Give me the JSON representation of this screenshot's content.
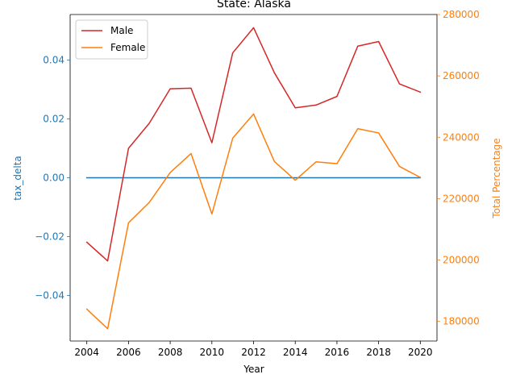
{
  "chart_data": {
    "type": "line",
    "title": "State: Alaska",
    "xlabel": "Year",
    "ylabel_left": "tax_delta",
    "ylabel_right": "Total Percentage",
    "x": [
      2004,
      2005,
      2006,
      2007,
      2008,
      2009,
      2010,
      2011,
      2012,
      2013,
      2014,
      2015,
      2016,
      2017,
      2018,
      2019,
      2020
    ],
    "x_ticks": [
      "2004",
      "2006",
      "2008",
      "2010",
      "2012",
      "2014",
      "2016",
      "2018",
      "2020"
    ],
    "xlim": [
      2003.2,
      2020.8
    ],
    "left_axis": {
      "ylim": [
        -0.0555,
        0.0555
      ],
      "ticks": [
        -0.04,
        -0.02,
        0.0,
        0.02,
        0.04
      ],
      "tick_labels": [
        "−0.04",
        "−0.02",
        "0.00",
        "0.02",
        "0.04"
      ],
      "color": "#1f77b4"
    },
    "right_axis": {
      "ylim": [
        173600,
        280000
      ],
      "ticks": [
        180000,
        200000,
        220000,
        240000,
        260000,
        280000
      ],
      "tick_labels": [
        "180000",
        "200000",
        "220000",
        "240000",
        "260000",
        "280000"
      ],
      "color": "#ff7f0e"
    },
    "series": [
      {
        "name": "",
        "axis": "left",
        "color": "#1f77b4",
        "values": [
          0,
          0,
          0,
          0,
          0,
          0,
          0,
          0,
          0,
          0,
          0,
          0,
          0,
          0,
          0,
          0,
          0
        ]
      },
      {
        "name": "Male",
        "axis": "right",
        "color": "#d62728",
        "values": [
          205800,
          199700,
          236400,
          244600,
          255800,
          256000,
          238200,
          267500,
          275700,
          261000,
          249600,
          250500,
          253300,
          269700,
          271200,
          257400,
          254700
        ]
      },
      {
        "name": "Female",
        "axis": "right",
        "color": "#ff7f0e",
        "values": [
          184000,
          177600,
          212100,
          218800,
          228500,
          234700,
          215000,
          239700,
          247600,
          232100,
          226000,
          232000,
          231400,
          242800,
          241400,
          230500,
          226900
        ]
      }
    ],
    "legend": {
      "placement": "top-left",
      "entries": [
        {
          "label": "Male",
          "color": "#d62728"
        },
        {
          "label": "Female",
          "color": "#ff7f0e"
        }
      ]
    },
    "grid": false
  }
}
